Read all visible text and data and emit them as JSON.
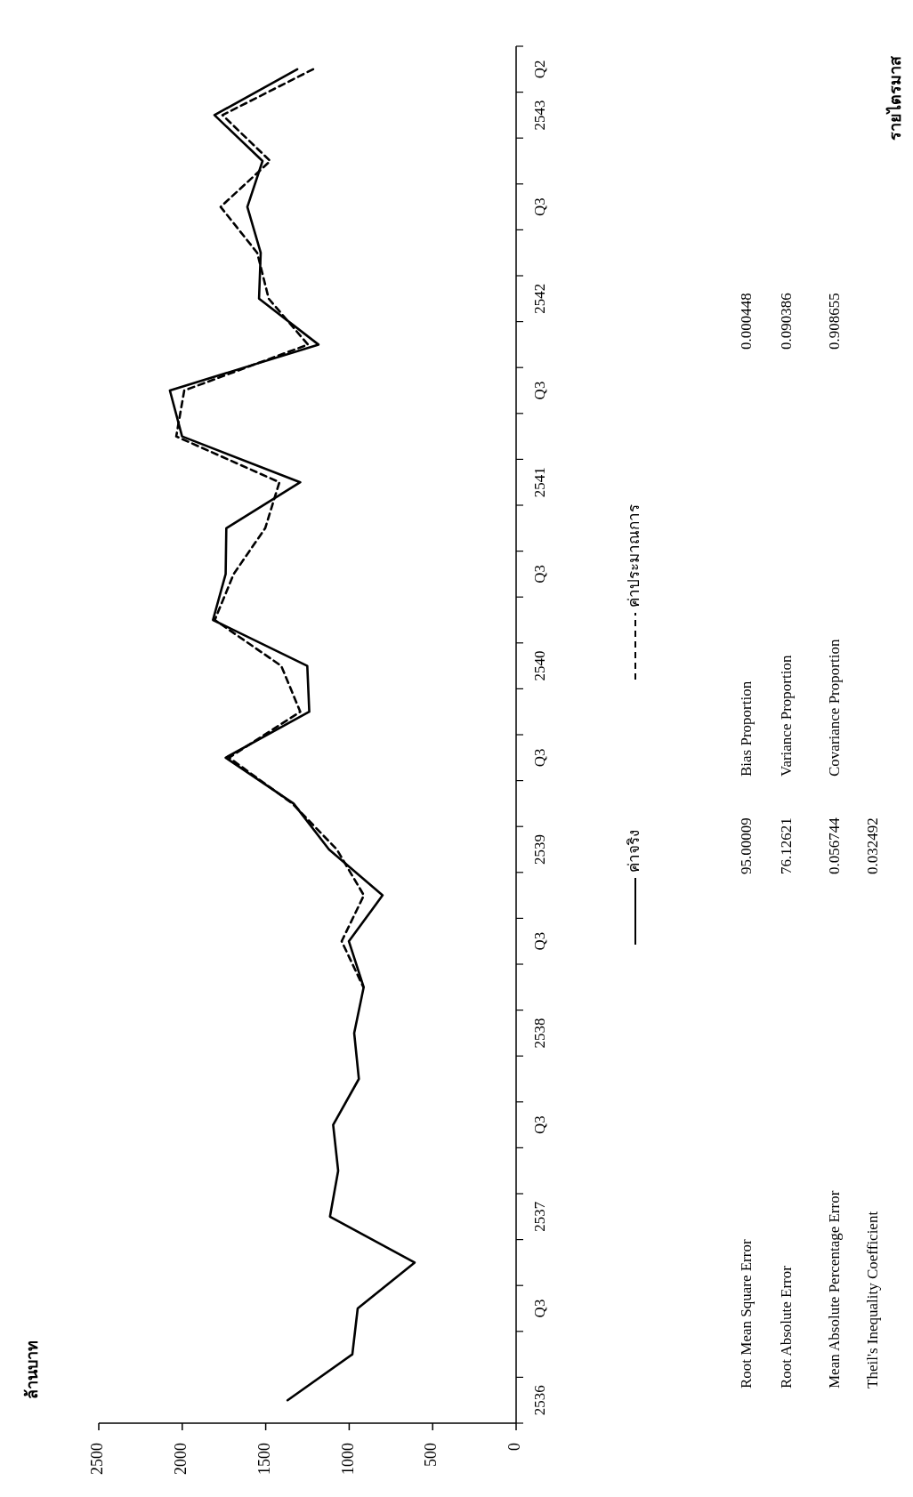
{
  "chart_data": {
    "type": "line",
    "orientation": "horizontal",
    "categories": [
      "Q2",
      "2543",
      null,
      "Q3",
      null,
      "2542",
      null,
      "Q3",
      null,
      "2541",
      null,
      "Q3",
      null,
      "2540",
      null,
      "Q3",
      null,
      "2539",
      null,
      "Q3",
      null,
      "2538",
      null,
      "Q3",
      null,
      "2537",
      null,
      "Q3",
      null,
      "2536"
    ],
    "series": [
      {
        "name": "ค่าจริง",
        "color": "#000000",
        "line_style": "solid",
        "values": [
          1311,
          1807,
          1519,
          1610,
          1530,
          1540,
          1184,
          2074,
          2001,
          1293,
          1736,
          1740,
          1816,
          1251,
          1239,
          1740,
          1333,
          1121,
          800,
          1002,
          913,
          970,
          942,
          1096,
          1066,
          1115,
          608,
          949,
          981,
          1369
        ]
      },
      {
        "name": "ค่าประมาณการ",
        "color": "#000000",
        "line_style": "dashed",
        "values": [
          1216,
          1759,
          1473,
          1770,
          1551,
          1482,
          1247,
          1988,
          2036,
          1418,
          1503,
          1692,
          1805,
          1407,
          1293,
          1720,
          1340,
          1074,
          912,
          1045,
          915,
          null,
          null,
          null,
          null,
          null,
          null,
          null,
          null,
          null
        ]
      }
    ],
    "xlim": [
      2500,
      0
    ],
    "xticks": [
      0,
      500,
      1000,
      1500,
      2000,
      2500
    ],
    "grid": false,
    "legend": "right",
    "marker": "none",
    "annotations": [
      "ล้านบาท",
      "รายไตรมาส",
      "Root Mean Square Error",
      "95.00009",
      "Root Absolute Error",
      "76.12621",
      "Mean Absolute Percentage Error",
      "0.056744",
      "Theil's Inequality Coefficient",
      "0.032492",
      "Bias Proportion",
      "0.000448",
      "Variance Proportion",
      "0.090386",
      "Covariance Proportion",
      "0.908655"
    ]
  }
}
